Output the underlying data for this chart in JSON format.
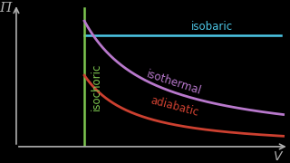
{
  "bg_color": "#000000",
  "axis_color": "#b0b0b0",
  "isobaric_color": "#4dc8e8",
  "isochoric_color": "#7ec850",
  "isothermal_color": "#b878cc",
  "adiabatic_color": "#cc4030",
  "isobaric_label": "isobaric",
  "isochoric_label": "isochoric",
  "isothermal_label": "isothermal",
  "adiabatic_label": "adiabatic",
  "xlabel": "V",
  "ylabel": "Π",
  "xlim": [
    0,
    10
  ],
  "ylim": [
    0,
    10
  ],
  "isobaric_y": 7.8,
  "isochoric_x": 2.5,
  "isothermal_k": 22.0,
  "adiabatic_k": 18.0,
  "adiabatic_gamma": 1.4,
  "curve_xstart": 2.5,
  "curve_xend": 9.8,
  "label_fontsize": 8.5
}
